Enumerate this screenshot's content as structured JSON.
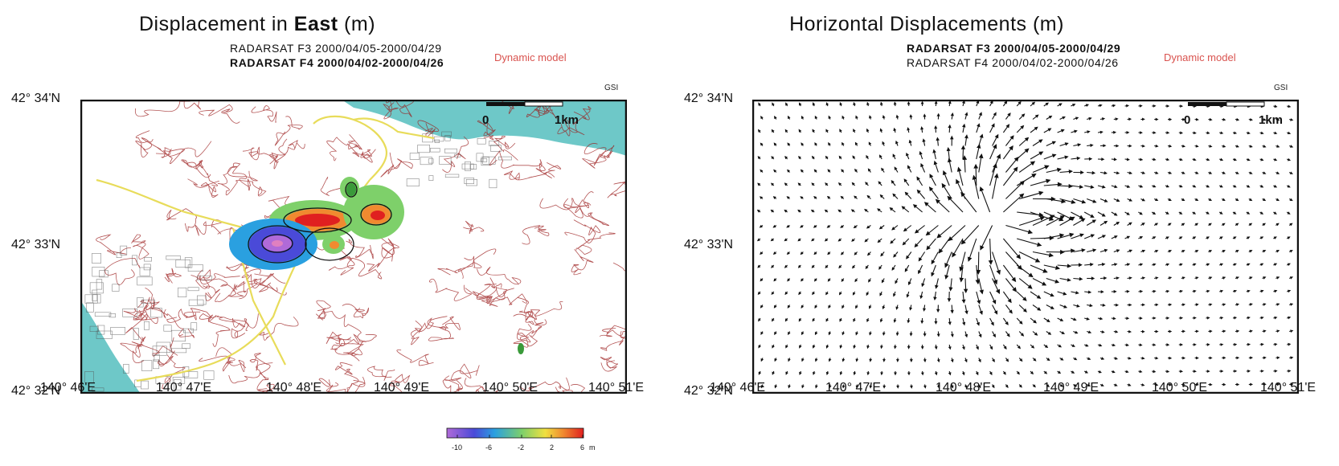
{
  "colors": {
    "sea": "#6ec8c8",
    "contour": "#9b1c1c",
    "road": "#e8dc5a",
    "model_text": "#d9534f"
  },
  "left": {
    "title_prefix": "Displacement in ",
    "title_bold": "East",
    "title_suffix": " (m)",
    "sub1": "RADARSAT F3 2000/04/05-2000/04/29",
    "sub2": "RADARSAT F4 2000/04/02-2000/04/26",
    "model": "Dynamic model",
    "gsi": "GSI",
    "lat_labels": [
      "42° 34'N",
      "42° 33'N",
      "42° 32'N"
    ],
    "lon_labels": [
      "140° 46'E",
      "140° 47'E",
      "140° 48'E",
      "140° 49'E",
      "140° 50'E",
      "140° 51'E"
    ],
    "scale_labels": [
      "0",
      "1km"
    ],
    "colorbar": {
      "ticks": [
        "-10",
        "-6",
        "-2",
        "2",
        "6"
      ],
      "unit": "m",
      "colors": [
        "#b06ad8",
        "#4a4ad8",
        "#2aa0e0",
        "#7ed06a",
        "#f0e040",
        "#f08a30",
        "#e02020"
      ]
    }
  },
  "right": {
    "title": "Horizontal Displacements (m)",
    "sub1": "RADARSAT F3 2000/04/05-2000/04/29",
    "sub2": "RADARSAT F4 2000/04/02-2000/04/26",
    "model": "Dynamic model",
    "gsi": "GSI",
    "lat_labels": [
      "42° 34'N",
      "42° 33'N",
      "42° 32'N"
    ],
    "lon_labels": [
      "140° 46'E",
      "140° 47'E",
      "140° 48'E",
      "140° 49'E",
      "140° 50'E",
      "140° 51'E"
    ],
    "scale_labels": [
      "0",
      "1km"
    ]
  }
}
